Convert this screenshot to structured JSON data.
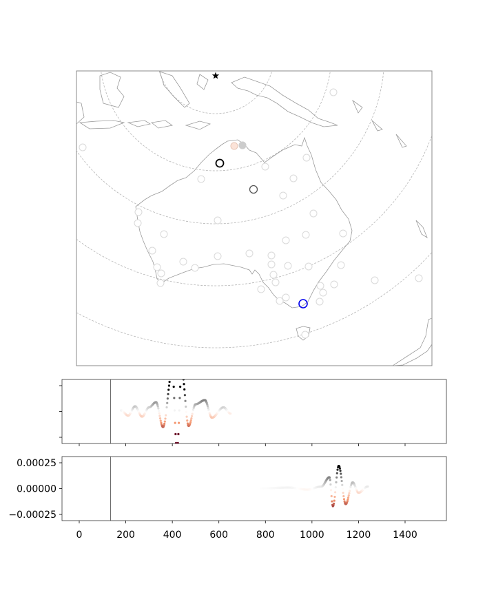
{
  "chart_data": [
    {
      "type": "map",
      "title": "",
      "markers": {
        "event_star": {
          "symbol": "star",
          "color": "#000000"
        },
        "highlighted_stations": [
          {
            "color": "#000000",
            "role": "black ring"
          },
          {
            "color": "#555555",
            "role": "grey ring"
          },
          {
            "color": "#0000ee",
            "role": "blue ring"
          }
        ],
        "background_stations": {
          "color": "#d9d9d9"
        }
      },
      "range_rings": 5,
      "coastline_color": "#9a9a9a"
    },
    {
      "type": "scatter",
      "title": "",
      "xlabel": "",
      "ylabel": "",
      "xlim": [
        -75,
        1575
      ],
      "ylim": [
        -0.00031,
        0.00031
      ],
      "x_ticks": [
        0,
        200,
        400,
        600,
        800,
        1000,
        1200,
        1400
      ],
      "y_ticks": [
        0.00025,
        0.0,
        -0.00025
      ],
      "y_tick_labels": [],
      "vertical_marker_x": 135,
      "series": [
        {
          "envelope_center": 450,
          "carrier_period": 60,
          "points": [
            [
              180,
              1e-05
            ],
            [
              210,
              -4e-05
            ],
            [
              240,
              5e-05
            ],
            [
              270,
              -5e-05
            ],
            [
              300,
              4e-05
            ],
            [
              330,
              9e-05
            ],
            [
              360,
              -0.00015
            ],
            [
              400,
              0.0004
            ],
            [
              420,
              -0.00038
            ],
            [
              440,
              0.0004
            ],
            [
              470,
              -0.00014
            ],
            [
              500,
              7e-05
            ],
            [
              540,
              0.00011
            ],
            [
              570,
              -6e-05
            ],
            [
              620,
              4e-05
            ],
            [
              650,
              -2e-05
            ]
          ]
        }
      ]
    },
    {
      "type": "scatter",
      "title": "",
      "xlabel": "",
      "ylabel": "",
      "xlim": [
        -75,
        1575
      ],
      "ylim": [
        -0.00031,
        0.00031
      ],
      "x_ticks": [
        0,
        200,
        400,
        600,
        800,
        1000,
        1200,
        1400
      ],
      "y_ticks": [
        0.00025,
        0.0,
        -0.00025
      ],
      "y_tick_labels": [
        "0.00025",
        "0.00000",
        "−0.00025"
      ],
      "vertical_marker_x": 135,
      "series": [
        {
          "envelope_center": 1115,
          "carrier_period": 60,
          "points": [
            [
              780,
              2e-06
            ],
            [
              900,
              1e-05
            ],
            [
              980,
              -1e-05
            ],
            [
              1040,
              2e-05
            ],
            [
              1075,
              0.00011
            ],
            [
              1090,
              -0.00017
            ],
            [
              1115,
              0.00022
            ],
            [
              1145,
              -0.00015
            ],
            [
              1175,
              6e-05
            ],
            [
              1200,
              -4e-05
            ],
            [
              1240,
              2e-05
            ]
          ]
        }
      ],
      "x_tick_labels": [
        "0",
        "200",
        "400",
        "600",
        "800",
        "1000",
        "1200",
        "1400"
      ]
    }
  ]
}
